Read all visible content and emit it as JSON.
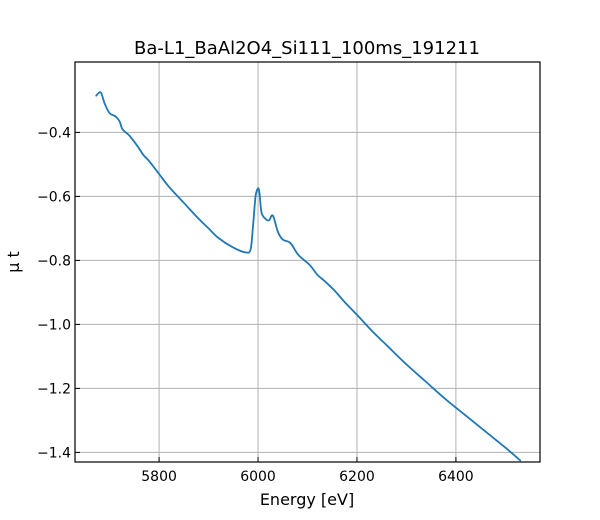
{
  "chart_data": {
    "type": "line",
    "title": "Ba-L1_BaAl2O4_Si111_100ms_191211",
    "xlabel": "Energy [eV]",
    "ylabel": "μ t",
    "xlim": [
      5630,
      6570
    ],
    "ylim": [
      -1.43,
      -0.18
    ],
    "xticks": [
      5800,
      6000,
      6200,
      6400
    ],
    "xtick_labels": [
      "5800",
      "6000",
      "6200",
      "6400"
    ],
    "yticks": [
      -1.4,
      -1.2,
      -1.0,
      -0.8,
      -0.6,
      -0.4
    ],
    "ytick_labels": [
      "−1.4",
      "−1.2",
      "−1.0",
      "−0.8",
      "−0.6",
      "−0.4"
    ],
    "grid": true,
    "series": [
      {
        "color": "#1f77b4",
        "x": [
          5673,
          5682,
          5690,
          5700,
          5712,
          5720,
          5726,
          5740,
          5755,
          5768,
          5780,
          5800,
          5820,
          5850,
          5880,
          5900,
          5920,
          5950,
          5975,
          5985,
          5990,
          5995,
          6000,
          6003,
          6007,
          6015,
          6022,
          6030,
          6040,
          6050,
          6065,
          6080,
          6090,
          6105,
          6120,
          6135,
          6155,
          6175,
          6200,
          6230,
          6260,
          6300,
          6340,
          6380,
          6420,
          6460,
          6500,
          6530
        ],
        "y": [
          -0.285,
          -0.275,
          -0.31,
          -0.34,
          -0.35,
          -0.365,
          -0.39,
          -0.41,
          -0.44,
          -0.47,
          -0.49,
          -0.53,
          -0.57,
          -0.62,
          -0.67,
          -0.7,
          -0.73,
          -0.76,
          -0.775,
          -0.765,
          -0.69,
          -0.6,
          -0.575,
          -0.59,
          -0.65,
          -0.67,
          -0.675,
          -0.66,
          -0.71,
          -0.735,
          -0.745,
          -0.78,
          -0.795,
          -0.815,
          -0.845,
          -0.865,
          -0.895,
          -0.93,
          -0.97,
          -1.02,
          -1.065,
          -1.125,
          -1.18,
          -1.235,
          -1.285,
          -1.335,
          -1.385,
          -1.425
        ]
      }
    ]
  }
}
